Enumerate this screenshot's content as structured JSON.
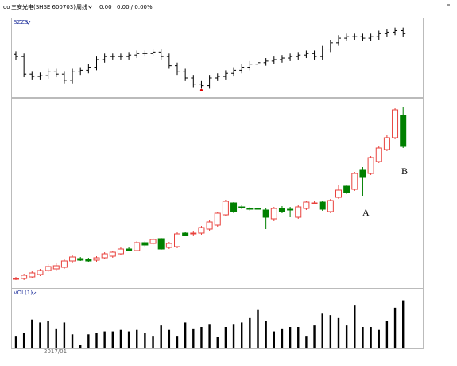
{
  "header": {
    "name": "三安光电(SHSE 600703)",
    "period": "周线",
    "price": "0.00",
    "change": "0.00 / 0.00%"
  },
  "x_label": "2017/01",
  "chart_data": [
    {
      "type": "ohlc",
      "title": "SZZS",
      "color": "#000000",
      "low_marker_color": "#e00000",
      "ylim": [
        0,
        100
      ],
      "open": [
        56,
        53,
        30,
        27,
        28,
        33,
        30,
        22,
        33,
        35,
        39,
        49,
        53,
        53,
        53,
        55,
        57,
        57,
        59,
        53,
        41,
        33,
        25,
        17,
        15,
        25,
        27,
        31,
        35,
        39,
        43,
        45,
        47,
        49,
        51,
        53,
        55,
        57,
        53,
        63,
        71,
        77,
        79,
        79,
        77,
        79,
        83,
        85,
        87
      ],
      "high": [
        60,
        57,
        34,
        32,
        37,
        37,
        34,
        37,
        39,
        43,
        53,
        57,
        57,
        57,
        59,
        61,
        61,
        63,
        63,
        57,
        45,
        37,
        29,
        21,
        29,
        31,
        35,
        39,
        43,
        47,
        49,
        51,
        53,
        55,
        57,
        59,
        61,
        61,
        67,
        75,
        81,
        83,
        83,
        83,
        83,
        87,
        89,
        91,
        91
      ],
      "low": [
        49,
        26,
        23,
        23,
        24,
        26,
        18,
        18,
        29,
        31,
        35,
        45,
        49,
        49,
        49,
        51,
        53,
        53,
        49,
        37,
        29,
        21,
        13,
        11,
        11,
        21,
        23,
        27,
        31,
        35,
        39,
        41,
        43,
        45,
        47,
        49,
        51,
        49,
        49,
        59,
        67,
        73,
        75,
        73,
        73,
        75,
        79,
        81,
        79
      ],
      "close": [
        53,
        30,
        27,
        28,
        33,
        30,
        22,
        33,
        35,
        39,
        49,
        53,
        53,
        53,
        55,
        57,
        57,
        59,
        53,
        41,
        33,
        25,
        17,
        15,
        25,
        27,
        31,
        35,
        39,
        43,
        45,
        47,
        49,
        51,
        53,
        55,
        57,
        53,
        63,
        71,
        77,
        79,
        79,
        77,
        79,
        83,
        85,
        87,
        83
      ]
    },
    {
      "type": "candlestick",
      "up_color": "#e8413c",
      "down_color": "#008000",
      "ylim": [
        0,
        230
      ],
      "annotations": [
        "A",
        "B"
      ],
      "open": [
        8,
        8,
        10,
        13,
        18,
        20,
        22,
        30,
        33,
        32,
        31,
        34,
        36,
        39,
        45,
        43,
        53,
        52,
        58,
        47,
        48,
        65,
        64,
        65,
        70,
        75,
        88,
        103,
        98,
        96,
        96,
        94,
        83,
        96,
        95,
        85,
        96,
        103,
        104,
        92,
        110,
        124,
        120,
        144,
        140,
        155,
        170,
        185,
        213
      ],
      "high": [
        10,
        14,
        17,
        20,
        26,
        27,
        33,
        37,
        35,
        34,
        36,
        41,
        43,
        47,
        47,
        55,
        55,
        59,
        59,
        54,
        66,
        67,
        68,
        74,
        82,
        92,
        107,
        104,
        100,
        98,
        97,
        96,
        98,
        99,
        98,
        100,
        106,
        105,
        106,
        108,
        125,
        126,
        142,
        148,
        162,
        175,
        188,
        222,
        224
      ],
      "low": [
        6,
        6,
        8,
        11,
        16,
        18,
        20,
        28,
        30,
        29,
        29,
        32,
        34,
        37,
        42,
        42,
        48,
        50,
        44,
        45,
        46,
        61,
        62,
        63,
        68,
        73,
        86,
        90,
        95,
        93,
        93,
        70,
        80,
        90,
        85,
        83,
        94,
        101,
        93,
        90,
        108,
        114,
        118,
        112,
        138,
        153,
        168,
        183,
        172
      ],
      "close": [
        8,
        12,
        15,
        18,
        23,
        24,
        30,
        35,
        31,
        30,
        34,
        39,
        41,
        45,
        43,
        53,
        50,
        57,
        45,
        52,
        64,
        62,
        65,
        72,
        79,
        90,
        105,
        92,
        97,
        95,
        95,
        85,
        96,
        92,
        94,
        98,
        104,
        103,
        95,
        106,
        119,
        116,
        140,
        135,
        160,
        172,
        185,
        220,
        174
      ]
    },
    {
      "type": "bar",
      "title": "VOL(1)",
      "color": "#000000",
      "ylim": [
        0,
        70
      ],
      "values": [
        16,
        20,
        38,
        34,
        36,
        26,
        34,
        18,
        4,
        18,
        20,
        22,
        22,
        24,
        22,
        24,
        20,
        16,
        30,
        24,
        16,
        34,
        26,
        28,
        32,
        14,
        28,
        32,
        34,
        40,
        52,
        36,
        22,
        26,
        28,
        28,
        16,
        30,
        46,
        44,
        40,
        30,
        58,
        28,
        28,
        24,
        36,
        54,
        64
      ]
    }
  ]
}
